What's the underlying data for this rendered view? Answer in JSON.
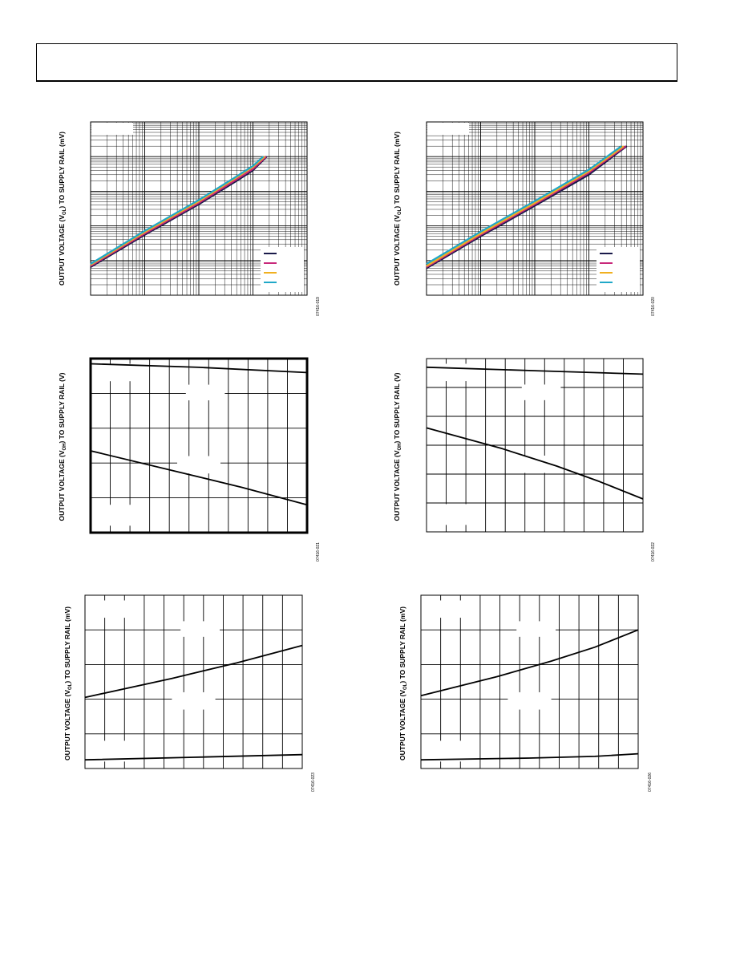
{
  "page": {
    "header_text": ""
  },
  "charts": [
    {
      "id": "c1",
      "ylabel_parts": [
        "OUTPUT VOLTAGE (V",
        "OL",
        ") TO SUPPLY RAIL (mV)"
      ],
      "figure_id": "07416-019",
      "chart_data": {
        "type": "line",
        "xscale": "log",
        "yscale": "log",
        "grid": true,
        "legend_placement": "bottom-right",
        "legend_colors": [
          "#1a1a4a",
          "#c8287a",
          "#f0b020",
          "#20a8c8"
        ],
        "series": [
          {
            "color": "#1a1a4a",
            "values": [
              [
                0.001,
                0.065
              ],
              [
                0.01,
                0.55
              ],
              [
                0.1,
                4.2
              ],
              [
                0.5,
                20
              ],
              [
                1,
                40
              ],
              [
                1.8,
                100
              ]
            ]
          },
          {
            "color": "#c8287a",
            "values": [
              [
                0.001,
                0.07
              ],
              [
                0.01,
                0.6
              ],
              [
                0.1,
                4.6
              ],
              [
                0.5,
                22
              ],
              [
                1,
                44
              ],
              [
                1.75,
                100
              ]
            ]
          },
          {
            "color": "#f0b020",
            "values": [
              [
                0.001,
                0.075
              ],
              [
                0.01,
                0.66
              ],
              [
                0.1,
                5.1
              ],
              [
                0.5,
                25
              ],
              [
                1,
                50
              ],
              [
                1.65,
                100
              ]
            ]
          },
          {
            "color": "#20a8c8",
            "values": [
              [
                0.001,
                0.08
              ],
              [
                0.01,
                0.72
              ],
              [
                0.1,
                5.6
              ],
              [
                0.5,
                27
              ],
              [
                1,
                54
              ],
              [
                1.55,
                100
              ]
            ]
          }
        ],
        "xlim": [
          0.001,
          10
        ],
        "ylim": [
          0.01,
          1000
        ]
      }
    },
    {
      "id": "c2",
      "ylabel_parts": [
        "OUTPUT VOLTAGE (V",
        "OL",
        ") TO SUPPLY RAIL (mV)"
      ],
      "figure_id": "07416-020",
      "chart_data": {
        "type": "line",
        "xscale": "log",
        "yscale": "log",
        "grid": true,
        "legend_placement": "bottom-right",
        "legend_colors": [
          "#1a1a4a",
          "#c8287a",
          "#f0b020",
          "#20a8c8"
        ],
        "series": [
          {
            "color": "#1a1a4a",
            "values": [
              [
                0.001,
                0.06
              ],
              [
                0.01,
                0.5
              ],
              [
                0.1,
                3.8
              ],
              [
                1,
                30
              ],
              [
                3,
                110
              ],
              [
                5,
                200
              ]
            ]
          },
          {
            "color": "#c8287a",
            "values": [
              [
                0.001,
                0.065
              ],
              [
                0.01,
                0.55
              ],
              [
                0.1,
                4.2
              ],
              [
                1,
                34
              ],
              [
                3,
                120
              ],
              [
                4.8,
                200
              ]
            ]
          },
          {
            "color": "#f0b020",
            "values": [
              [
                0.001,
                0.07
              ],
              [
                0.01,
                0.6
              ],
              [
                0.1,
                4.6
              ],
              [
                1,
                38
              ],
              [
                3,
                130
              ],
              [
                4.4,
                200
              ]
            ]
          },
          {
            "color": "#20a8c8",
            "values": [
              [
                0.001,
                0.08
              ],
              [
                0.01,
                0.68
              ],
              [
                0.1,
                5.2
              ],
              [
                1,
                42
              ],
              [
                3,
                145
              ],
              [
                4,
                200
              ]
            ]
          }
        ],
        "xlim": [
          0.001,
          10
        ],
        "ylim": [
          0.01,
          1000
        ]
      }
    },
    {
      "id": "c3",
      "ylabel_parts": [
        "OUTPUT VOLTAGE (V",
        "OH",
        ") TO SUPPLY RAIL (V)"
      ],
      "figure_id": "07416-021",
      "chart_data": {
        "type": "line",
        "grid": true,
        "thick_frame": true,
        "x_divisions": 11,
        "y_divisions": 5,
        "series": [
          {
            "color": "#000000",
            "values": [
              [
                0,
                0.97
              ],
              [
                0.5,
                0.95
              ],
              [
                1,
                0.92
              ]
            ]
          },
          {
            "color": "#000000",
            "values": [
              [
                0,
                0.47
              ],
              [
                0.4,
                0.35
              ],
              [
                0.7,
                0.26
              ],
              [
                1,
                0.16
              ]
            ]
          }
        ],
        "xlim": [
          0,
          1
        ],
        "ylim": [
          0,
          1
        ]
      }
    },
    {
      "id": "c4",
      "ylabel_parts": [
        "OUTPUT VOLTAGE (V",
        "OH",
        ") TO SUPPLY RAIL (V)"
      ],
      "figure_id": "07416-022",
      "chart_data": {
        "type": "line",
        "grid": true,
        "thick_frame": false,
        "x_divisions": 11,
        "y_divisions": 6,
        "series": [
          {
            "color": "#000000",
            "values": [
              [
                0,
                0.95
              ],
              [
                0.5,
                0.93
              ],
              [
                1,
                0.91
              ]
            ]
          },
          {
            "color": "#000000",
            "values": [
              [
                0,
                0.6
              ],
              [
                0.35,
                0.48
              ],
              [
                0.6,
                0.38
              ],
              [
                0.8,
                0.29
              ],
              [
                1,
                0.19
              ]
            ]
          }
        ],
        "xlim": [
          0,
          1
        ],
        "ylim": [
          0,
          1
        ]
      }
    },
    {
      "id": "c5",
      "ylabel_parts": [
        "OUTPUT VOLTAGE (V",
        "OL",
        ") TO SUPPLY RAIL (mV)"
      ],
      "figure_id": "07416-023",
      "chart_data": {
        "type": "line",
        "grid": true,
        "thick_frame": false,
        "x_divisions": 11,
        "y_divisions": 5,
        "series": [
          {
            "color": "#000000",
            "values": [
              [
                0,
                0.41
              ],
              [
                0.4,
                0.52
              ],
              [
                0.7,
                0.61
              ],
              [
                1,
                0.71
              ]
            ]
          },
          {
            "color": "#000000",
            "values": [
              [
                0,
                0.05
              ],
              [
                0.5,
                0.065
              ],
              [
                1,
                0.08
              ]
            ]
          }
        ],
        "xlim": [
          0,
          1
        ],
        "ylim": [
          0,
          1
        ]
      }
    },
    {
      "id": "c6",
      "ylabel_parts": [
        "OUTPUT VOLTAGE (V",
        "OL",
        ") TO SUPPLY RAIL (mV)"
      ],
      "figure_id": "07416-026",
      "chart_data": {
        "type": "line",
        "grid": true,
        "thick_frame": false,
        "x_divisions": 11,
        "y_divisions": 5,
        "series": [
          {
            "color": "#000000",
            "values": [
              [
                0,
                0.42
              ],
              [
                0.35,
                0.53
              ],
              [
                0.6,
                0.62
              ],
              [
                0.8,
                0.7
              ],
              [
                1,
                0.8
              ]
            ]
          },
          {
            "color": "#000000",
            "values": [
              [
                0,
                0.05
              ],
              [
                0.5,
                0.06
              ],
              [
                0.8,
                0.07
              ],
              [
                1,
                0.085
              ]
            ]
          }
        ],
        "xlim": [
          0,
          1
        ],
        "ylim": [
          0,
          1
        ]
      }
    }
  ]
}
